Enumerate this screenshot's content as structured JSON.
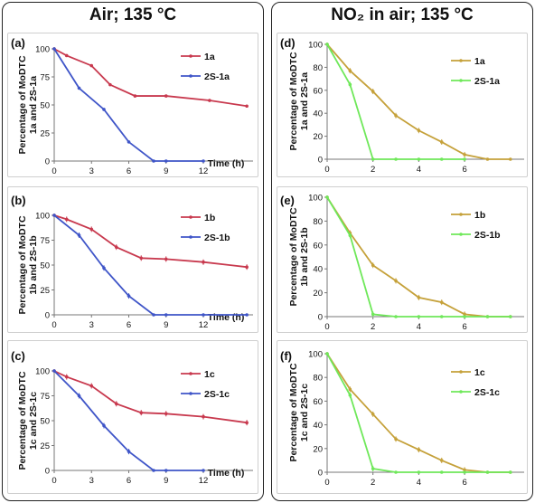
{
  "header": {
    "left_title": "Air; 135 °C",
    "right_title": "NO₂ in air; 135 °C"
  },
  "colors": {
    "red": "#c8394e",
    "blue": "#3f55c8",
    "gold": "#c5a13a",
    "green": "#6fe85a"
  },
  "chart_data": [
    {
      "id": "a",
      "panel_label": "(a)",
      "type": "line",
      "ylabel": [
        "Percentage of MoDTC",
        "1a and 2S-1a"
      ],
      "xlabel": "Time (h)",
      "xticks": [
        0,
        3,
        6,
        9,
        12
      ],
      "yticks": [
        0,
        25,
        50,
        75,
        100
      ],
      "xlim": [
        0,
        16
      ],
      "ylim": [
        0,
        100
      ],
      "error_bars": false,
      "series": [
        {
          "name": "1a",
          "color": "red",
          "x": [
            0,
            1,
            3,
            4.5,
            6.5,
            9,
            12.5,
            15.5
          ],
          "y": [
            100,
            94,
            85,
            68,
            58,
            58,
            54,
            49
          ]
        },
        {
          "name": "2S-1a",
          "color": "blue",
          "x": [
            0,
            2,
            4,
            6,
            8,
            9,
            12
          ],
          "y": [
            100,
            65,
            46,
            17,
            0,
            0,
            0
          ]
        }
      ]
    },
    {
      "id": "b",
      "panel_label": "(b)",
      "type": "line",
      "ylabel": [
        "Percentage of MoDTC",
        "1b and 2S-1b"
      ],
      "xlabel": "Time (h)",
      "xticks": [
        0,
        3,
        6,
        9,
        12
      ],
      "yticks": [
        0,
        25,
        50,
        75,
        100
      ],
      "xlim": [
        0,
        16
      ],
      "ylim": [
        0,
        100
      ],
      "error_bars": true,
      "series": [
        {
          "name": "1b",
          "color": "red",
          "x": [
            0,
            1,
            3,
            5,
            7,
            9,
            12,
            15.5
          ],
          "y": [
            100,
            96,
            86,
            68,
            57,
            56,
            53,
            48
          ]
        },
        {
          "name": "2S-1b",
          "color": "blue",
          "x": [
            0,
            2,
            4,
            6,
            8,
            9,
            12,
            15.5
          ],
          "y": [
            100,
            80,
            47,
            19,
            0,
            0,
            0,
            0
          ]
        }
      ]
    },
    {
      "id": "c",
      "panel_label": "(c)",
      "type": "line",
      "ylabel": [
        "Percentage of MoDTC",
        "1c and 2S-1c"
      ],
      "xlabel": "Time (h)",
      "xticks": [
        0,
        3,
        6,
        9,
        12
      ],
      "yticks": [
        0,
        25,
        50,
        75,
        100
      ],
      "xlim": [
        0,
        16
      ],
      "ylim": [
        0,
        100
      ],
      "error_bars": true,
      "series": [
        {
          "name": "1c",
          "color": "red",
          "x": [
            0,
            1,
            3,
            5,
            7,
            9,
            12,
            15.5
          ],
          "y": [
            100,
            94,
            85,
            67,
            58,
            57,
            54,
            48
          ]
        },
        {
          "name": "2S-1c",
          "color": "blue",
          "x": [
            0,
            2,
            4,
            6,
            8,
            9,
            12
          ],
          "y": [
            100,
            75,
            45,
            19,
            0,
            0,
            0
          ]
        }
      ]
    },
    {
      "id": "d",
      "panel_label": "(d)",
      "type": "line",
      "ylabel": [
        "Percentage of MoDTC",
        "1a and 2S-1a"
      ],
      "xlabel": "",
      "xticks": [
        0,
        2,
        4,
        6
      ],
      "yticks": [
        0,
        20,
        40,
        60,
        80,
        100
      ],
      "xlim": [
        0,
        8.6
      ],
      "ylim": [
        0,
        100
      ],
      "error_bars": true,
      "series": [
        {
          "name": "1a",
          "color": "gold",
          "x": [
            0,
            1,
            2,
            3,
            4,
            5,
            6,
            7,
            8
          ],
          "y": [
            100,
            77,
            59,
            38,
            25,
            15,
            4,
            0,
            0
          ]
        },
        {
          "name": "2S-1a",
          "color": "green",
          "x": [
            0,
            1,
            2,
            3,
            4,
            5,
            6
          ],
          "y": [
            100,
            65,
            0,
            0,
            0,
            0,
            0
          ]
        }
      ]
    },
    {
      "id": "e",
      "panel_label": "(e)",
      "type": "line",
      "ylabel": [
        "Percentage of MoDTC",
        "1b and 2S-1b"
      ],
      "xlabel": "",
      "xticks": [
        0,
        2,
        4,
        6
      ],
      "yticks": [
        0,
        20,
        40,
        60,
        80,
        100
      ],
      "xlim": [
        0,
        8.6
      ],
      "ylim": [
        0,
        100
      ],
      "error_bars": true,
      "series": [
        {
          "name": "1b",
          "color": "gold",
          "x": [
            0,
            1,
            2,
            3,
            4,
            5,
            6,
            7,
            8
          ],
          "y": [
            100,
            70,
            43,
            30,
            16,
            12,
            2,
            0,
            0
          ]
        },
        {
          "name": "2S-1b",
          "color": "green",
          "x": [
            0,
            1,
            2,
            3,
            4,
            5,
            6,
            7,
            8
          ],
          "y": [
            100,
            68,
            2,
            0,
            0,
            0,
            0,
            0,
            0
          ]
        }
      ]
    },
    {
      "id": "f",
      "panel_label": "(f)",
      "type": "line",
      "ylabel": [
        "Percentage of MoDTC",
        "1c and 2S-1c"
      ],
      "xlabel": "",
      "xticks": [
        0,
        2,
        4,
        6
      ],
      "yticks": [
        0,
        20,
        40,
        60,
        80,
        100
      ],
      "xlim": [
        0,
        8.6
      ],
      "ylim": [
        0,
        100
      ],
      "error_bars": true,
      "series": [
        {
          "name": "1c",
          "color": "gold",
          "x": [
            0,
            1,
            2,
            3,
            4,
            5,
            6,
            7,
            8
          ],
          "y": [
            100,
            70,
            49,
            28,
            19,
            10,
            2,
            0,
            0
          ]
        },
        {
          "name": "2S-1c",
          "color": "green",
          "x": [
            0,
            1,
            2,
            3,
            4,
            5,
            6,
            7,
            8
          ],
          "y": [
            100,
            65,
            3,
            0,
            0,
            0,
            0,
            0,
            0
          ]
        }
      ]
    }
  ]
}
